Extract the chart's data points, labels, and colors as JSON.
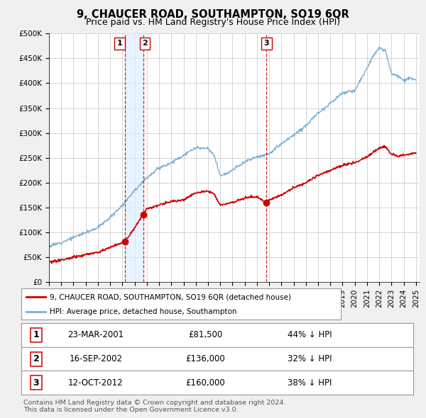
{
  "title": "9, CHAUCER ROAD, SOUTHAMPTON, SO19 6QR",
  "subtitle": "Price paid vs. HM Land Registry's House Price Index (HPI)",
  "ylim": [
    0,
    500000
  ],
  "yticks": [
    0,
    50000,
    100000,
    150000,
    200000,
    250000,
    300000,
    350000,
    400000,
    450000,
    500000
  ],
  "ytick_labels": [
    "£0",
    "£50K",
    "£100K",
    "£150K",
    "£200K",
    "£250K",
    "£300K",
    "£350K",
    "£400K",
    "£450K",
    "£500K"
  ],
  "background_color": "#f0f0f0",
  "plot_bg_color": "#ffffff",
  "grid_color": "#cccccc",
  "sale_color": "#cc0000",
  "hpi_color": "#7ab0d4",
  "vline_color": "#cc0000",
  "highlight_color": "#ddeeff",
  "sales": [
    {
      "date_num": 2001.22,
      "price": 81500,
      "label": "1",
      "date_str": "23-MAR-2001",
      "pct": "44% ↓ HPI"
    },
    {
      "date_num": 2002.72,
      "price": 136000,
      "label": "2",
      "date_str": "16-SEP-2002",
      "pct": "32% ↓ HPI"
    },
    {
      "date_num": 2012.79,
      "price": 160000,
      "label": "3",
      "date_str": "12-OCT-2012",
      "pct": "38% ↓ HPI"
    }
  ],
  "legend_sale_label": "9, CHAUCER ROAD, SOUTHAMPTON, SO19 6QR (detached house)",
  "legend_hpi_label": "HPI: Average price, detached house, Southampton",
  "footer": "Contains HM Land Registry data © Crown copyright and database right 2024.\nThis data is licensed under the Open Government Licence v3.0.",
  "title_fontsize": 10.5,
  "subtitle_fontsize": 9,
  "tick_fontsize": 7.5,
  "hpi_points_x": [
    1995,
    1996,
    1997,
    1998,
    1999,
    2000,
    2001,
    2002,
    2003,
    2004,
    2005,
    2006,
    2007,
    2008,
    2008.5,
    2009,
    2009.5,
    2010,
    2011,
    2012,
    2013,
    2014,
    2015,
    2016,
    2017,
    2018,
    2019,
    2020,
    2021,
    2021.5,
    2022,
    2022.5,
    2023,
    2023.5,
    2024,
    2024.5,
    2025
  ],
  "hpi_points_y": [
    72000,
    80000,
    90000,
    100000,
    110000,
    130000,
    155000,
    185000,
    210000,
    230000,
    240000,
    255000,
    270000,
    268000,
    255000,
    215000,
    218000,
    225000,
    242000,
    252000,
    258000,
    278000,
    295000,
    315000,
    340000,
    360000,
    380000,
    385000,
    430000,
    455000,
    470000,
    465000,
    420000,
    415000,
    405000,
    410000,
    405000
  ],
  "sale_points_x": [
    1995,
    1996,
    1997,
    1998,
    1999,
    2000,
    2001.22,
    2002.72,
    2003,
    2004,
    2005,
    2006,
    2007,
    2008,
    2008.5,
    2009,
    2010,
    2011,
    2012,
    2012.79,
    2013,
    2014,
    2015,
    2016,
    2017,
    2018,
    2019,
    2020,
    2021,
    2022,
    2022.5,
    2023,
    2023.5,
    2024,
    2024.5,
    2025
  ],
  "sale_points_y": [
    40000,
    44000,
    50000,
    55000,
    60000,
    70000,
    81500,
    136000,
    148000,
    155000,
    162000,
    165000,
    180000,
    183000,
    178000,
    155000,
    160000,
    170000,
    172000,
    160000,
    165000,
    175000,
    190000,
    200000,
    215000,
    225000,
    235000,
    240000,
    252000,
    270000,
    272000,
    257000,
    253000,
    255000,
    258000,
    260000
  ]
}
